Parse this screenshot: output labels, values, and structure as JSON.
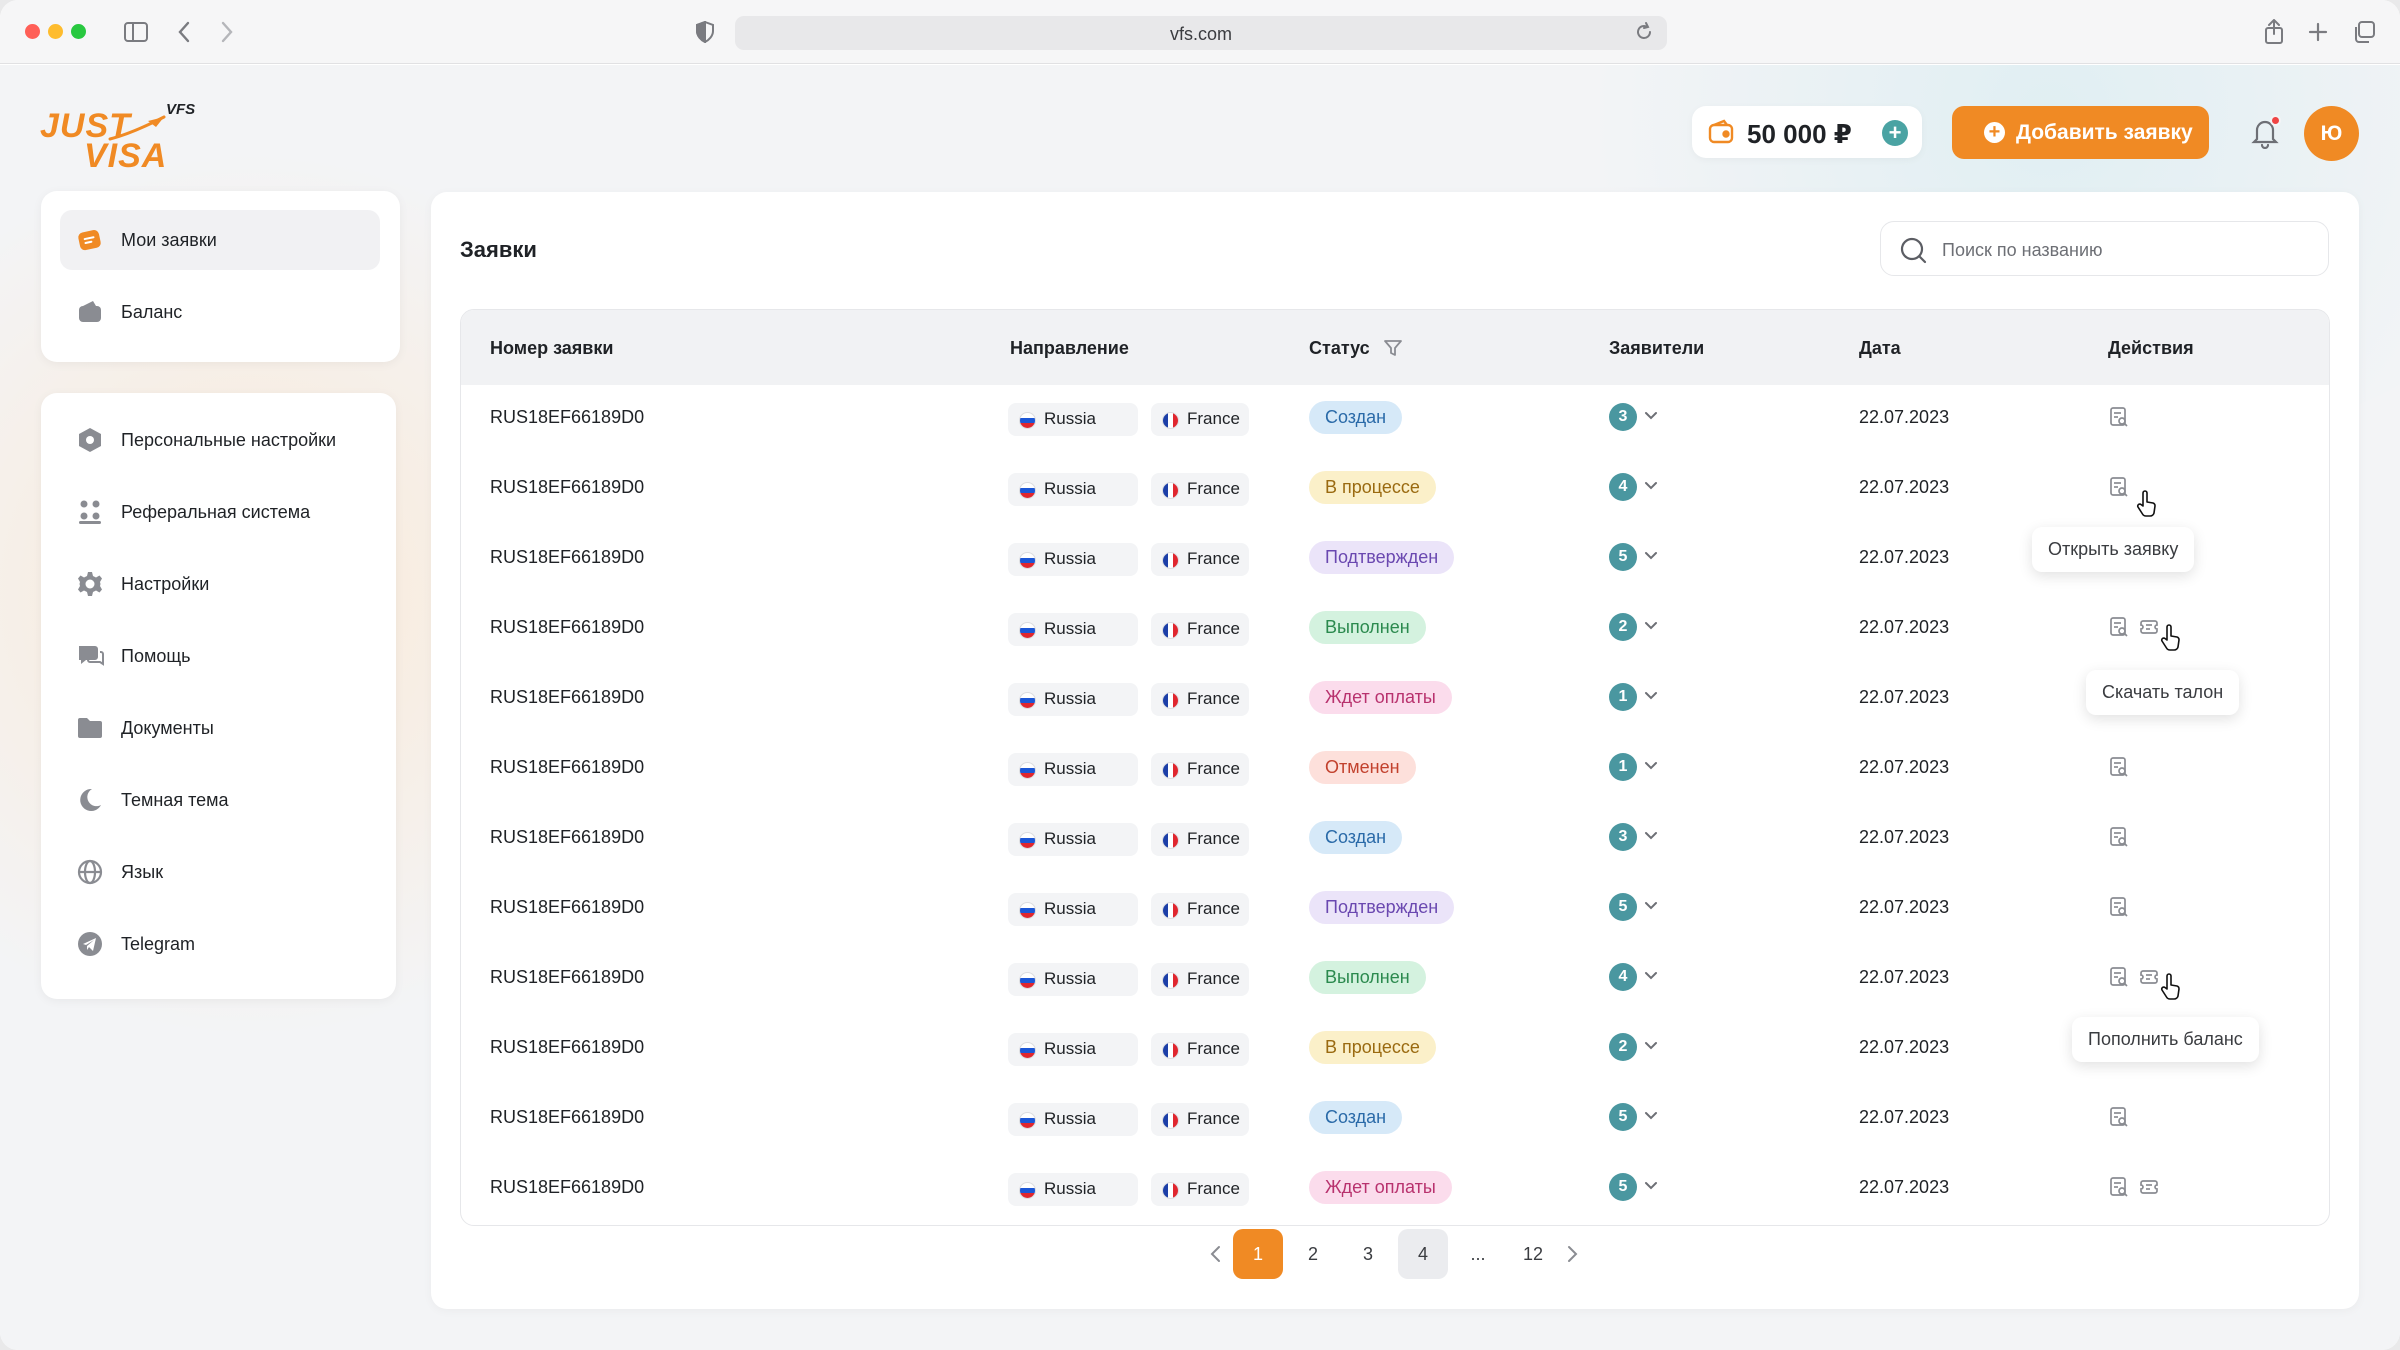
{
  "browser": {
    "url": "vfs.com"
  },
  "logo": {
    "line1": "JUST",
    "line2": "VISA",
    "tag": "VFS"
  },
  "header": {
    "balance": "50 000 ₽",
    "add_button": "Добавить заявку",
    "avatar_initial": "Ю"
  },
  "sidebar": {
    "top_items": [
      {
        "label": "Мои заявки",
        "icon": "applications-icon",
        "active": true
      },
      {
        "label": "Баланс",
        "icon": "wallet-icon"
      }
    ],
    "items": [
      {
        "label": "Персональные настройки",
        "icon": "hexagon-settings-icon"
      },
      {
        "label": "Реферальная система",
        "icon": "referral-icon"
      },
      {
        "label": "Настройки",
        "icon": "gear-icon"
      },
      {
        "label": "Помощь",
        "icon": "chat-help-icon"
      },
      {
        "label": "Документы",
        "icon": "folder-icon"
      },
      {
        "label": "Темная тема",
        "icon": "moon-icon"
      },
      {
        "label": "Язык",
        "icon": "globe-icon"
      },
      {
        "label": "Telegram",
        "icon": "telegram-icon"
      }
    ]
  },
  "main": {
    "title": "Заявки",
    "search_placeholder": "Поиск по названию",
    "columns": [
      "Номер заявки",
      "Направление",
      "Статус",
      "Заявители",
      "Дата",
      "Действия"
    ],
    "status_colors": {
      "Создан": {
        "bg": "#d6e9f8",
        "fg": "#2a6aa8"
      },
      "В процессе": {
        "bg": "#fbf0c9",
        "fg": "#9a6a10"
      },
      "Подтвержден": {
        "bg": "#ebe4f9",
        "fg": "#6a48b0"
      },
      "Выполнен": {
        "bg": "#d4f2df",
        "fg": "#2b8a4e"
      },
      "Ждет оплаты": {
        "bg": "#fbdcec",
        "fg": "#b8326e"
      },
      "Отменен": {
        "bg": "#fde0db",
        "fg": "#c2412d"
      }
    },
    "rows": [
      {
        "id": "RUS18EF66189D0",
        "from": "Russia",
        "to": "France",
        "status": "Создан",
        "applicants": "3",
        "date": "22.07.2023",
        "actions": 1
      },
      {
        "id": "RUS18EF66189D0",
        "from": "Russia",
        "to": "France",
        "status": "В процессе",
        "applicants": "4",
        "date": "22.07.2023",
        "actions": 1
      },
      {
        "id": "RUS18EF66189D0",
        "from": "Russia",
        "to": "France",
        "status": "Подтвержден",
        "applicants": "5",
        "date": "22.07.2023",
        "actions": 1
      },
      {
        "id": "RUS18EF66189D0",
        "from": "Russia",
        "to": "France",
        "status": "Выполнен",
        "applicants": "2",
        "date": "22.07.2023",
        "actions": 2
      },
      {
        "id": "RUS18EF66189D0",
        "from": "Russia",
        "to": "France",
        "status": "Ждет оплаты",
        "applicants": "1",
        "date": "22.07.2023",
        "actions": 2
      },
      {
        "id": "RUS18EF66189D0",
        "from": "Russia",
        "to": "France",
        "status": "Отменен",
        "applicants": "1",
        "date": "22.07.2023",
        "actions": 1
      },
      {
        "id": "RUS18EF66189D0",
        "from": "Russia",
        "to": "France",
        "status": "Создан",
        "applicants": "3",
        "date": "22.07.2023",
        "actions": 1
      },
      {
        "id": "RUS18EF66189D0",
        "from": "Russia",
        "to": "France",
        "status": "Подтвержден",
        "applicants": "5",
        "date": "22.07.2023",
        "actions": 1
      },
      {
        "id": "RUS18EF66189D0",
        "from": "Russia",
        "to": "France",
        "status": "Выполнен",
        "applicants": "4",
        "date": "22.07.2023",
        "actions": 2
      },
      {
        "id": "RUS18EF66189D0",
        "from": "Russia",
        "to": "France",
        "status": "В процессе",
        "applicants": "2",
        "date": "22.07.2023",
        "actions": 1
      },
      {
        "id": "RUS18EF66189D0",
        "from": "Russia",
        "to": "France",
        "status": "Создан",
        "applicants": "5",
        "date": "22.07.2023",
        "actions": 1
      },
      {
        "id": "RUS18EF66189D0",
        "from": "Russia",
        "to": "France",
        "status": "Ждет оплаты",
        "applicants": "5",
        "date": "22.07.2023",
        "actions": 2
      }
    ],
    "tooltips": {
      "open": "Открыть заявку",
      "download": "Скачать талон",
      "topup": "Пополнить баланс"
    }
  },
  "pagination": {
    "pages": [
      "1",
      "2",
      "3",
      "4",
      "...",
      "12"
    ],
    "active": "1",
    "current": "4"
  }
}
